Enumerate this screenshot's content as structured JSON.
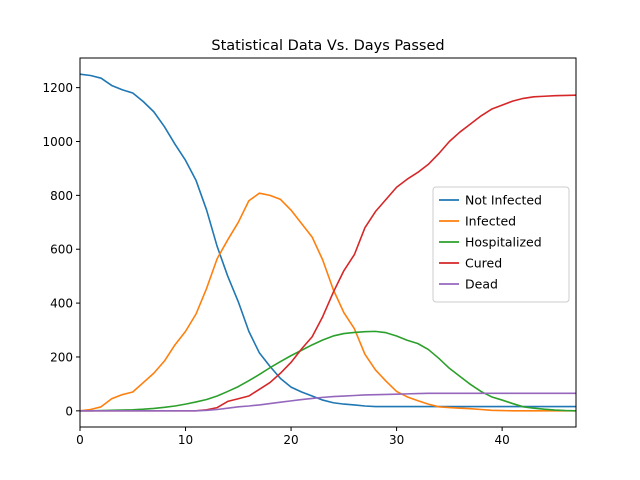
{
  "chart_data": {
    "type": "line",
    "title": "Statistical Data Vs. Days Passed",
    "xlabel": "",
    "ylabel": "",
    "xlim": [
      0,
      47
    ],
    "ylim": [
      -60,
      1310
    ],
    "xticks": [
      0,
      10,
      20,
      30,
      40
    ],
    "yticks": [
      0,
      200,
      400,
      600,
      800,
      1000,
      1200
    ],
    "grid": false,
    "legend_position": "center-right",
    "x": [
      0,
      1,
      2,
      3,
      4,
      5,
      6,
      7,
      8,
      9,
      10,
      11,
      12,
      13,
      14,
      15,
      16,
      17,
      18,
      19,
      20,
      21,
      22,
      23,
      24,
      25,
      26,
      27,
      28,
      29,
      30,
      31,
      32,
      33,
      34,
      35,
      36,
      37,
      38,
      39,
      40,
      41,
      42,
      43,
      44,
      45,
      46,
      47
    ],
    "series": [
      {
        "name": "Not Infected",
        "color": "#1f77b4",
        "values": [
          1250,
          1245,
          1235,
          1208,
          1192,
          1180,
          1148,
          1110,
          1055,
          990,
          930,
          855,
          745,
          610,
          500,
          405,
          295,
          215,
          165,
          120,
          88,
          70,
          55,
          40,
          30,
          25,
          22,
          18,
          16,
          16,
          16,
          16,
          16,
          16,
          16,
          16,
          16,
          16,
          16,
          16,
          16,
          16,
          16,
          16,
          16,
          16,
          16,
          16
        ]
      },
      {
        "name": "Infected",
        "color": "#ff7f0e",
        "values": [
          0,
          5,
          15,
          45,
          60,
          70,
          105,
          140,
          185,
          245,
          295,
          360,
          455,
          565,
          635,
          700,
          780,
          808,
          800,
          785,
          745,
          695,
          645,
          560,
          450,
          365,
          305,
          210,
          152,
          110,
          72,
          52,
          38,
          25,
          15,
          12,
          10,
          8,
          5,
          2,
          1,
          0,
          0,
          0,
          0,
          0,
          0,
          0
        ]
      },
      {
        "name": "Hospitalized",
        "color": "#2ca02c",
        "values": [
          0,
          0,
          1,
          2,
          3,
          4,
          6,
          9,
          13,
          18,
          25,
          33,
          42,
          55,
          72,
          90,
          112,
          135,
          160,
          183,
          205,
          225,
          245,
          263,
          278,
          287,
          291,
          294,
          295,
          290,
          278,
          262,
          250,
          228,
          195,
          158,
          128,
          98,
          72,
          52,
          40,
          27,
          15,
          10,
          6,
          3,
          1,
          0
        ]
      },
      {
        "name": "Cured",
        "color": "#d62728",
        "values": [
          0,
          0,
          0,
          0,
          0,
          0,
          0,
          0,
          0,
          0,
          0,
          0,
          4,
          12,
          35,
          45,
          55,
          80,
          105,
          140,
          180,
          230,
          275,
          350,
          440,
          520,
          580,
          680,
          740,
          785,
          830,
          860,
          885,
          915,
          955,
          1000,
          1035,
          1065,
          1095,
          1120,
          1135,
          1150,
          1160,
          1166,
          1168,
          1170,
          1171,
          1172
        ]
      },
      {
        "name": "Dead",
        "color": "#9467bd",
        "values": [
          0,
          0,
          0,
          0,
          0,
          0,
          0,
          0,
          0,
          0,
          0,
          0,
          2,
          5,
          10,
          15,
          18,
          22,
          27,
          32,
          37,
          42,
          46,
          50,
          53,
          55,
          57,
          59,
          60,
          61,
          62,
          63,
          64,
          65,
          65,
          65,
          65,
          65,
          65,
          65,
          65,
          65,
          65,
          65,
          65,
          65,
          65,
          65
        ]
      }
    ]
  }
}
